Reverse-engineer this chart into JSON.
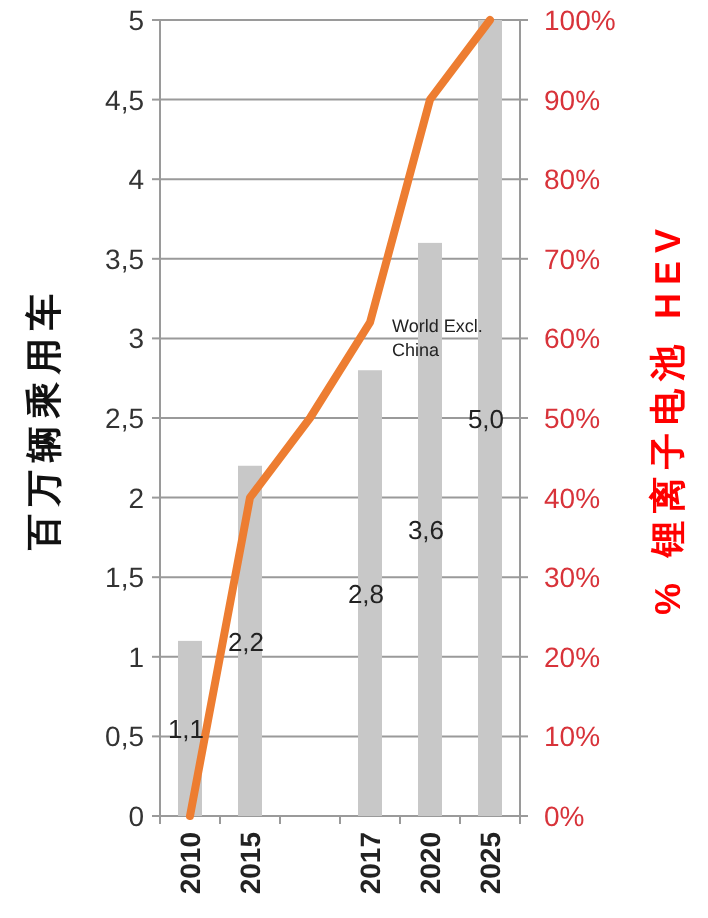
{
  "chart_data": {
    "type": "bar",
    "categories": [
      "2010",
      "2015",
      null,
      "2017",
      "2020",
      "2025"
    ],
    "series": [
      {
        "color": "#c8c8c8",
        "values": [
          1.1,
          2.2,
          null,
          2.8,
          3.6,
          5.0
        ],
        "value_labels": [
          "1,1",
          "2,2",
          null,
          "2,8",
          "3,6",
          "5,0"
        ]
      },
      {
        "type": "line",
        "axis": "y2",
        "color": "#ed7d31",
        "values": [
          0,
          40,
          50,
          62,
          90,
          100
        ]
      }
    ],
    "ylabel": "百万辆乘用车",
    "y2label": "% 锂离子电池 HEV",
    "ylim": [
      0,
      5
    ],
    "yticks": [
      0,
      {
        "value": 0.5,
        "label": "0,5"
      },
      1,
      {
        "value": 1.5,
        "label": "1,5"
      },
      2,
      {
        "value": 2.5,
        "label": "2,5"
      },
      3,
      {
        "value": 3.5,
        "label": "3,5"
      },
      4,
      {
        "value": 4.5,
        "label": "4,5"
      },
      5
    ],
    "y2lim": [
      0,
      100
    ],
    "y2ticks": [
      {
        "value": 0,
        "label": "0%"
      },
      {
        "value": 10,
        "label": "10%"
      },
      {
        "value": 20,
        "label": "20%"
      },
      {
        "value": 30,
        "label": "30%"
      },
      {
        "value": 40,
        "label": "40%"
      },
      {
        "value": 50,
        "label": "50%"
      },
      {
        "value": 60,
        "label": "60%"
      },
      {
        "value": 70,
        "label": "70%"
      },
      {
        "value": 80,
        "label": "80%"
      },
      {
        "value": 90,
        "label": "90%"
      },
      {
        "value": 100,
        "label": "100%"
      }
    ],
    "grid": "y",
    "annotations": [
      "World Excl. China"
    ]
  }
}
